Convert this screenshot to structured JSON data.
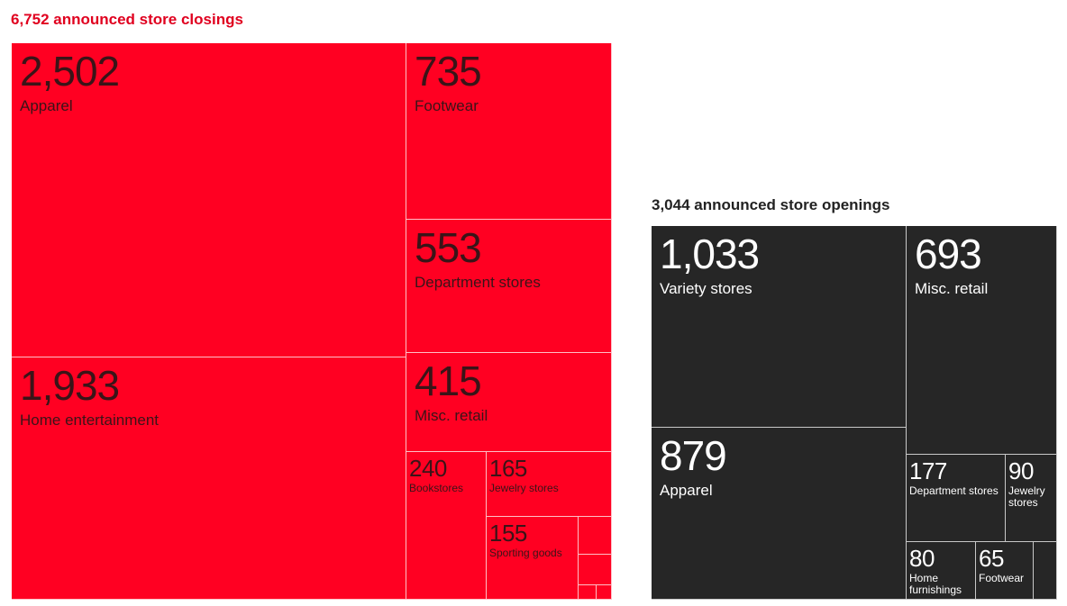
{
  "colors": {
    "closings_fill": "#ff0022",
    "closings_text": "#3a1418",
    "closings_title": "#e0001f",
    "openings_fill": "#262626",
    "openings_text": "#ffffff",
    "openings_title": "#222222"
  },
  "chart_data": [
    {
      "type": "treemap",
      "title": "6,752 announced store closings",
      "total": 6752,
      "categories": [
        "Apparel",
        "Home entertainment",
        "Footwear",
        "Department stores",
        "Misc. retail",
        "Bookstores",
        "Jewelry stores",
        "Sporting goods",
        "",
        "",
        "",
        ""
      ],
      "values": [
        2502,
        1933,
        735,
        553,
        415,
        240,
        165,
        155,
        24,
        15,
        9,
        6
      ],
      "value_labels": [
        "2,502",
        "1,933",
        "735",
        "553",
        "415",
        "240",
        "165",
        "155",
        "",
        "",
        "",
        ""
      ]
    },
    {
      "type": "treemap",
      "title": "3,044 announced store openings",
      "total": 3044,
      "categories": [
        "Variety stores",
        "Apparel",
        "Misc. retail",
        "Department stores",
        "Jewelry stores",
        "Home furnishings",
        "Footwear",
        ""
      ],
      "values": [
        1033,
        879,
        693,
        177,
        90,
        80,
        65,
        27
      ],
      "value_labels": [
        "1,033",
        "879",
        "693",
        "177",
        "90",
        "80",
        "65",
        ""
      ]
    }
  ]
}
